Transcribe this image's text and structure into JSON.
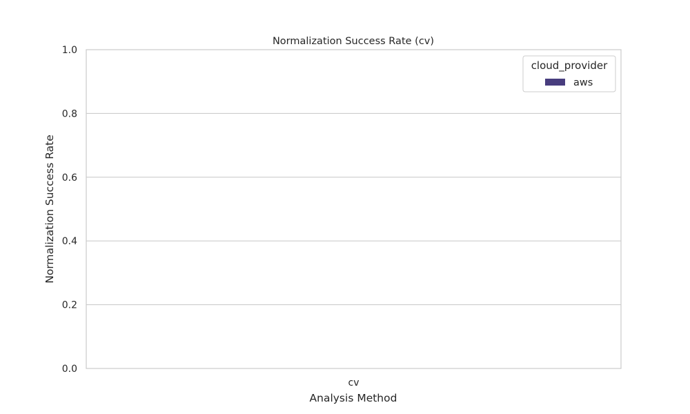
{
  "chart_data": {
    "type": "bar",
    "title": "Normalization Success Rate (cv)",
    "xlabel": "Analysis Method",
    "ylabel": "Normalization Success Rate",
    "categories": [
      "cv"
    ],
    "series": [
      {
        "name": "aws",
        "values": [
          0
        ],
        "color": "#483d7e"
      }
    ],
    "ylim": [
      0,
      1
    ],
    "yticks": [
      0,
      0.2,
      0.4,
      0.6,
      0.8,
      1
    ],
    "ytick_labels": [
      "0.0",
      "0.2",
      "0.4",
      "0.6",
      "0.8",
      "1.0"
    ],
    "grid": true,
    "legend": {
      "title": "cloud_provider",
      "placement": "top-right"
    }
  }
}
